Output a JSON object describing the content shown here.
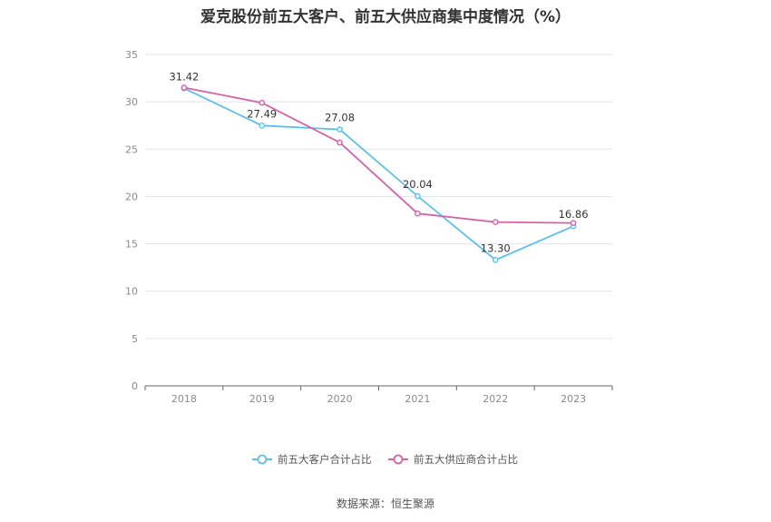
{
  "title": "爱克股份前五大客户、前五大供应商集中度情况（%）",
  "source": "数据来源：恒生聚源",
  "chart_data": {
    "type": "line",
    "title": "爱克股份前五大客户、前五大供应商集中度情况（%）",
    "categories": [
      "2018",
      "2019",
      "2020",
      "2021",
      "2022",
      "2023"
    ],
    "yticks": [
      "0",
      "5",
      "10",
      "15",
      "20",
      "25",
      "30",
      "35"
    ],
    "ylim": [
      0,
      35
    ],
    "grid": true,
    "legend_position": "bottom",
    "series": [
      {
        "name": "前五大客户合计占比",
        "color": "#5bc0eb",
        "values": [
          31.42,
          27.49,
          27.08,
          20.04,
          13.3,
          16.86
        ],
        "labels": [
          "31.42",
          "27.49",
          "27.08",
          "20.04",
          "13.30",
          "16.86"
        ]
      },
      {
        "name": "前五大供应商合计占比",
        "color": "#d462a6",
        "values": [
          31.5,
          29.9,
          25.7,
          18.2,
          17.3,
          17.2
        ]
      }
    ]
  }
}
